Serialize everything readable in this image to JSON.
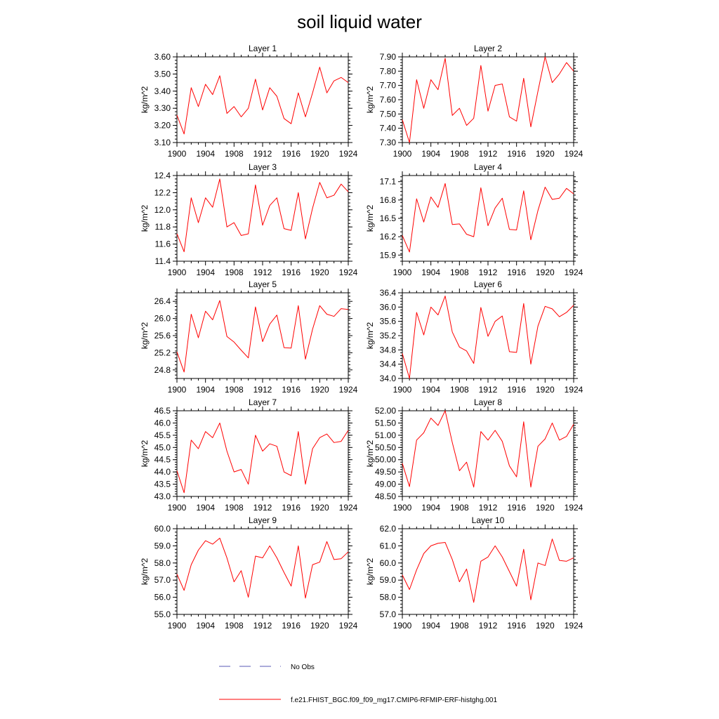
{
  "figure": {
    "title": "soil liquid water",
    "legend": [
      {
        "label": "No Obs",
        "color": "#5a5ab4",
        "style": "dashed"
      },
      {
        "label": "f.e21.FHIST_BGC.f09_f09_mg17.CMIP6-RFMIP-ERF-histghg.001",
        "color": "#ff0000",
        "style": "solid"
      }
    ]
  },
  "chart_data": [
    {
      "type": "line",
      "title": "Layer 1",
      "ylabel": "kg/m^2",
      "xlim": [
        1900,
        1924
      ],
      "ylim": [
        3.1,
        3.6
      ],
      "xticks": [
        "1900",
        "1904",
        "1908",
        "1912",
        "1916",
        "1920",
        "1924"
      ],
      "yticks": [
        "3.10",
        "3.20",
        "3.30",
        "3.40",
        "3.50",
        "3.60"
      ],
      "series": [
        {
          "color": "#ff0000",
          "x": [
            1900,
            1901,
            1902,
            1903,
            1904,
            1905,
            1906,
            1907,
            1908,
            1909,
            1910,
            1911,
            1912,
            1913,
            1914,
            1915,
            1916,
            1917,
            1918,
            1919,
            1920,
            1921,
            1922,
            1923,
            1924
          ],
          "values": [
            3.26,
            3.15,
            3.42,
            3.31,
            3.44,
            3.38,
            3.49,
            3.27,
            3.31,
            3.25,
            3.3,
            3.47,
            3.29,
            3.42,
            3.37,
            3.24,
            3.21,
            3.39,
            3.25,
            3.39,
            3.54,
            3.39,
            3.46,
            3.48,
            3.45
          ]
        }
      ]
    },
    {
      "type": "line",
      "title": "Layer 2",
      "ylabel": "kg/m^2",
      "xlim": [
        1900,
        1924
      ],
      "ylim": [
        7.3,
        7.9
      ],
      "xticks": [
        "1900",
        "1904",
        "1908",
        "1912",
        "1916",
        "1920",
        "1924"
      ],
      "yticks": [
        "7.30",
        "7.40",
        "7.50",
        "7.60",
        "7.70",
        "7.80",
        "7.90"
      ],
      "series": [
        {
          "color": "#ff0000",
          "x": [
            1900,
            1901,
            1902,
            1903,
            1904,
            1905,
            1906,
            1907,
            1908,
            1909,
            1910,
            1911,
            1912,
            1913,
            1914,
            1915,
            1916,
            1917,
            1918,
            1919,
            1920,
            1921,
            1922,
            1923,
            1924
          ],
          "values": [
            7.46,
            7.3,
            7.74,
            7.54,
            7.74,
            7.67,
            7.89,
            7.49,
            7.54,
            7.42,
            7.47,
            7.84,
            7.52,
            7.7,
            7.71,
            7.48,
            7.45,
            7.75,
            7.41,
            7.66,
            7.9,
            7.72,
            7.78,
            7.86,
            7.8
          ]
        }
      ]
    },
    {
      "type": "line",
      "title": "Layer 3",
      "ylabel": "kg/m^2",
      "xlim": [
        1900,
        1924
      ],
      "ylim": [
        11.4,
        12.4
      ],
      "xticks": [
        "1900",
        "1904",
        "1908",
        "1912",
        "1916",
        "1920",
        "1924"
      ],
      "yticks": [
        "11.4",
        "11.6",
        "11.8",
        "12.0",
        "12.2",
        "12.4"
      ],
      "series": [
        {
          "color": "#ff0000",
          "x": [
            1900,
            1901,
            1902,
            1903,
            1904,
            1905,
            1906,
            1907,
            1908,
            1909,
            1910,
            1911,
            1912,
            1913,
            1914,
            1915,
            1916,
            1917,
            1918,
            1919,
            1920,
            1921,
            1922,
            1923,
            1924
          ],
          "values": [
            11.72,
            11.51,
            12.14,
            11.85,
            12.14,
            12.03,
            12.36,
            11.8,
            11.85,
            11.7,
            11.72,
            12.29,
            11.82,
            12.05,
            12.14,
            11.78,
            11.76,
            12.2,
            11.66,
            12.02,
            12.32,
            12.14,
            12.17,
            12.3,
            12.21
          ]
        }
      ]
    },
    {
      "type": "line",
      "title": "Layer 4",
      "ylabel": "kg/m^2",
      "xlim": [
        1900,
        1924
      ],
      "ylim": [
        15.8,
        17.2
      ],
      "xticks": [
        "1900",
        "1904",
        "1908",
        "1912",
        "1916",
        "1920",
        "1924"
      ],
      "yticks": [
        "15.9",
        "16.2",
        "16.5",
        "16.8",
        "17.1"
      ],
      "series": [
        {
          "color": "#ff0000",
          "x": [
            1900,
            1901,
            1902,
            1903,
            1904,
            1905,
            1906,
            1907,
            1908,
            1909,
            1910,
            1911,
            1912,
            1913,
            1914,
            1915,
            1916,
            1917,
            1918,
            1919,
            1920,
            1921,
            1922,
            1923,
            1924
          ],
          "values": [
            16.22,
            15.95,
            16.82,
            16.44,
            16.85,
            16.68,
            17.07,
            16.4,
            16.41,
            16.24,
            16.2,
            17.0,
            16.38,
            16.67,
            16.83,
            16.32,
            16.31,
            16.95,
            16.15,
            16.63,
            17.01,
            16.81,
            16.83,
            16.99,
            16.9
          ]
        }
      ]
    },
    {
      "type": "line",
      "title": "Layer 5",
      "ylabel": "kg/m^2",
      "xlim": [
        1900,
        1924
      ],
      "ylim": [
        24.6,
        26.6
      ],
      "xticks": [
        "1900",
        "1904",
        "1908",
        "1912",
        "1916",
        "1920",
        "1924"
      ],
      "yticks": [
        "24.8",
        "25.2",
        "25.6",
        "26.0",
        "26.4"
      ],
      "series": [
        {
          "color": "#ff0000",
          "x": [
            1900,
            1901,
            1902,
            1903,
            1904,
            1905,
            1906,
            1907,
            1908,
            1909,
            1910,
            1911,
            1912,
            1913,
            1914,
            1915,
            1916,
            1917,
            1918,
            1919,
            1920,
            1921,
            1922,
            1923,
            1924
          ],
          "values": [
            25.22,
            24.75,
            26.1,
            25.55,
            26.17,
            25.97,
            26.42,
            25.58,
            25.45,
            25.26,
            25.08,
            26.27,
            25.46,
            25.87,
            26.08,
            25.32,
            25.31,
            26.3,
            25.05,
            25.75,
            26.3,
            26.1,
            26.05,
            26.23,
            26.21
          ]
        }
      ]
    },
    {
      "type": "line",
      "title": "Layer 6",
      "ylabel": "kg/m^2",
      "xlim": [
        1900,
        1924
      ],
      "ylim": [
        34.0,
        36.4
      ],
      "xticks": [
        "1900",
        "1904",
        "1908",
        "1912",
        "1916",
        "1920",
        "1924"
      ],
      "yticks": [
        "34.0",
        "34.4",
        "34.8",
        "35.2",
        "35.6",
        "36.0",
        "36.4"
      ],
      "series": [
        {
          "color": "#ff0000",
          "x": [
            1900,
            1901,
            1902,
            1903,
            1904,
            1905,
            1906,
            1907,
            1908,
            1909,
            1910,
            1911,
            1912,
            1913,
            1914,
            1915,
            1916,
            1917,
            1918,
            1919,
            1920,
            1921,
            1922,
            1923,
            1924
          ],
          "values": [
            34.7,
            34.0,
            35.85,
            35.22,
            36.0,
            35.78,
            36.31,
            35.3,
            34.88,
            34.77,
            34.42,
            35.99,
            35.18,
            35.6,
            35.75,
            34.75,
            34.73,
            36.1,
            34.4,
            35.47,
            36.02,
            35.95,
            35.73,
            35.85,
            36.05
          ]
        }
      ]
    },
    {
      "type": "line",
      "title": "Layer 7",
      "ylabel": "kg/m^2",
      "xlim": [
        1900,
        1924
      ],
      "ylim": [
        43.0,
        46.5
      ],
      "xticks": [
        "1900",
        "1904",
        "1908",
        "1912",
        "1916",
        "1920",
        "1924"
      ],
      "yticks": [
        "43.0",
        "43.5",
        "44.0",
        "44.5",
        "45.0",
        "45.5",
        "46.0",
        "46.5"
      ],
      "series": [
        {
          "color": "#ff0000",
          "x": [
            1900,
            1901,
            1902,
            1903,
            1904,
            1905,
            1906,
            1907,
            1908,
            1909,
            1910,
            1911,
            1912,
            1913,
            1914,
            1915,
            1916,
            1917,
            1918,
            1919,
            1920,
            1921,
            1922,
            1923,
            1924
          ],
          "values": [
            44.05,
            43.15,
            45.3,
            44.95,
            45.65,
            45.4,
            46.0,
            44.85,
            44.0,
            44.1,
            43.5,
            45.5,
            44.85,
            45.15,
            45.05,
            44.0,
            43.85,
            45.65,
            43.5,
            44.95,
            45.4,
            45.55,
            45.2,
            45.25,
            45.7
          ]
        }
      ]
    },
    {
      "type": "line",
      "title": "Layer 8",
      "ylabel": "kg/m^2",
      "xlim": [
        1900,
        1924
      ],
      "ylim": [
        48.5,
        52.0
      ],
      "xticks": [
        "1900",
        "1904",
        "1908",
        "1912",
        "1916",
        "1920",
        "1924"
      ],
      "yticks": [
        "48.50",
        "49.00",
        "49.50",
        "50.00",
        "50.50",
        "51.00",
        "51.50",
        "52.00"
      ],
      "series": [
        {
          "color": "#ff0000",
          "x": [
            1900,
            1901,
            1902,
            1903,
            1904,
            1905,
            1906,
            1907,
            1908,
            1909,
            1910,
            1911,
            1912,
            1913,
            1914,
            1915,
            1916,
            1917,
            1918,
            1919,
            1920,
            1921,
            1922,
            1923,
            1924
          ],
          "values": [
            49.85,
            48.9,
            50.8,
            51.1,
            51.7,
            51.4,
            52.0,
            50.7,
            49.55,
            49.9,
            48.88,
            51.15,
            50.8,
            51.2,
            50.75,
            49.75,
            49.3,
            51.55,
            48.88,
            50.55,
            50.85,
            51.5,
            50.8,
            50.95,
            51.45
          ]
        }
      ]
    },
    {
      "type": "line",
      "title": "Layer 9",
      "ylabel": "kg/m^2",
      "xlim": [
        1900,
        1924
      ],
      "ylim": [
        55.0,
        60.0
      ],
      "xticks": [
        "1900",
        "1904",
        "1908",
        "1912",
        "1916",
        "1920",
        "1924"
      ],
      "yticks": [
        "55.0",
        "56.0",
        "57.0",
        "58.0",
        "59.0",
        "60.0"
      ],
      "series": [
        {
          "color": "#ff0000",
          "x": [
            1900,
            1901,
            1902,
            1903,
            1904,
            1905,
            1906,
            1907,
            1908,
            1909,
            1910,
            1911,
            1912,
            1913,
            1914,
            1915,
            1916,
            1917,
            1918,
            1919,
            1920,
            1921,
            1922,
            1923,
            1924
          ],
          "values": [
            57.35,
            56.4,
            57.9,
            58.75,
            59.3,
            59.1,
            59.45,
            58.3,
            56.9,
            57.55,
            56.0,
            58.4,
            58.3,
            59.0,
            58.3,
            57.45,
            56.65,
            59.0,
            55.95,
            57.9,
            58.05,
            59.25,
            58.2,
            58.25,
            58.65
          ]
        }
      ]
    },
    {
      "type": "line",
      "title": "Layer 10",
      "ylabel": "kg/m^2",
      "xlim": [
        1900,
        1924
      ],
      "ylim": [
        57.0,
        62.0
      ],
      "xticks": [
        "1900",
        "1904",
        "1908",
        "1912",
        "1916",
        "1920",
        "1924"
      ],
      "yticks": [
        "57.0",
        "58.0",
        "59.0",
        "60.0",
        "61.0",
        "62.0"
      ],
      "series": [
        {
          "color": "#ff0000",
          "x": [
            1900,
            1901,
            1902,
            1903,
            1904,
            1905,
            1906,
            1907,
            1908,
            1909,
            1910,
            1911,
            1912,
            1913,
            1914,
            1915,
            1916,
            1917,
            1918,
            1919,
            1920,
            1921,
            1922,
            1923,
            1924
          ],
          "values": [
            59.3,
            58.45,
            59.6,
            60.55,
            61.0,
            61.15,
            61.2,
            60.2,
            58.9,
            59.65,
            57.7,
            60.1,
            60.35,
            61.0,
            60.35,
            59.5,
            58.65,
            60.8,
            57.85,
            60.0,
            59.85,
            61.4,
            60.15,
            60.1,
            60.3
          ]
        }
      ]
    }
  ]
}
